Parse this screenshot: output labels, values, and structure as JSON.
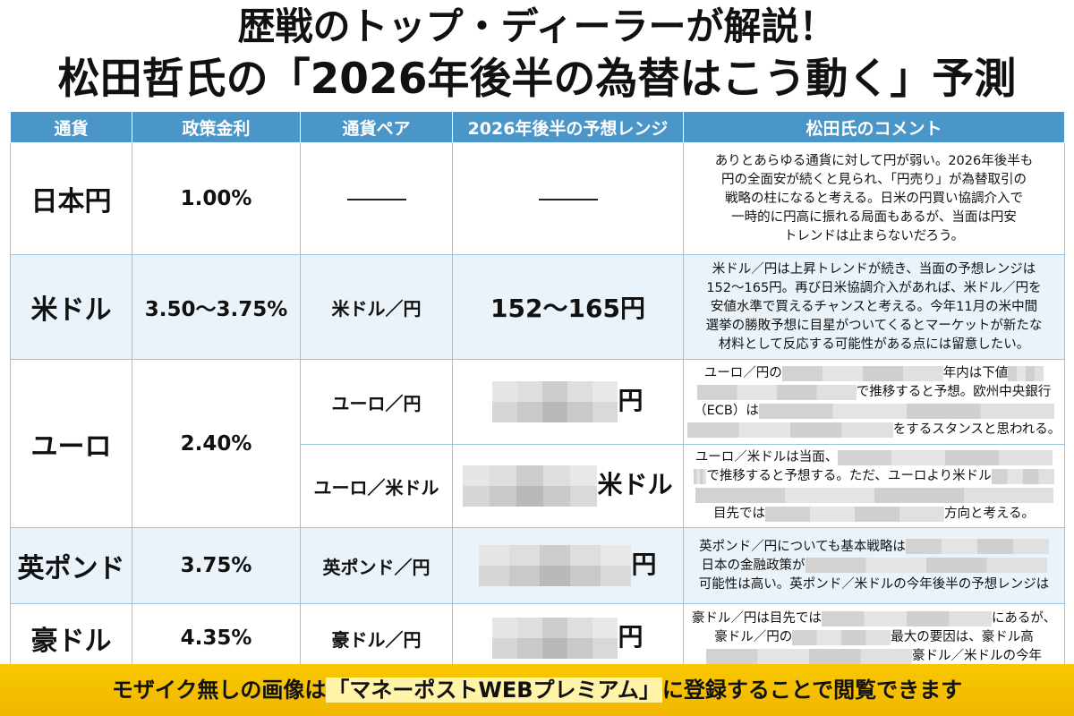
{
  "title": {
    "line1": "歴戦のトップ・ディーラーが解説！",
    "line2": "松田哲氏の「2026年後半の為替はこう動く」予測"
  },
  "table": {
    "headers": [
      "通貨",
      "政策金利",
      "通貨ペア",
      "2026年後半の予想レンジ",
      "松田氏のコメント"
    ],
    "jpy": {
      "currency": "日本円",
      "rate": "1.00%",
      "comment": [
        "ありとあらゆる通貨に対して円が弱い。2026年後半も",
        "円の全面安が続くと見られ、「円売り」が為替取引の",
        "戦略の柱になると考える。日米の円買い協調介入で",
        "一時的に円高に振れる局面もあるが、当面は円安",
        "トレンドは止まらないだろう。"
      ]
    },
    "usd": {
      "currency": "米ドル",
      "rate": "3.50～3.75%",
      "pair": "米ドル／円",
      "range": "152～165円",
      "comment": [
        "米ドル／円は上昇トレンドが続き、当面の予想レンジは",
        "152～165円。再び日米協調介入があれば、米ドル／円を",
        "安値水準で買えるチャンスと考える。今年11月の米中間",
        "選挙の勝敗予想に目星がついてくるとマーケットが新たな",
        "材料として反応する可能性がある点には留意したい。"
      ]
    },
    "eur": {
      "currency": "ユーロ",
      "rate": "2.40%",
      "pair1": "ユーロ／円",
      "range1_suffix": "円",
      "c1_a": "ユーロ／円の",
      "c1_b": "年内は下値",
      "c1_c": "で推移すると予想。欧州中央銀行",
      "c1_d": "（ECB）は",
      "c1_e": "をするスタンスと思われる。",
      "pair2": "ユーロ／米ドル",
      "range2_suffix": "米ドル",
      "c2_a": "ユーロ／米ドルは当面、",
      "c2_b": "で推移すると予想する。ただ、ユーロより米ドル",
      "c2_c": "目先では",
      "c2_d": "方向と考える。"
    },
    "gbp": {
      "currency": "英ポンド",
      "rate": "3.75%",
      "pair": "英ポンド／円",
      "range_suffix": "円",
      "c_a": "英ポンド／円についても基本戦略は",
      "c_b": "日本の金融政策が",
      "c_c": "可能性は高い。英ポンド／米ドルの今年後半の予想レンジは"
    },
    "aud": {
      "currency": "豪ドル",
      "rate": "4.35%",
      "pair": "豪ドル／円",
      "range_suffix": "円",
      "c_a": "豪ドル／円は目先では",
      "c_b": "にあるが、",
      "c_c": "豪ドル／円の",
      "c_d": "最大の要因は、豪ドル高",
      "c_e": "豪ドル／米ドルの今年"
    }
  },
  "banner": {
    "prefix": "モザイク無しの画像は",
    "highlight": "「マネーポストWEBプレミアム」",
    "suffix": "に登録することで閲覧できます"
  },
  "colors": {
    "header_bg": "#4a96c8",
    "row_shade": "#eaf3fa",
    "banner_bg": "#f2b700"
  }
}
